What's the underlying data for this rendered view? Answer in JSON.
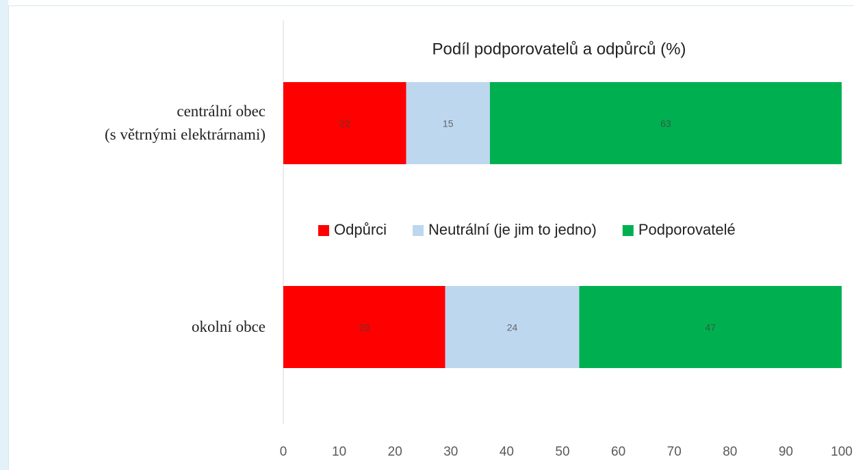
{
  "chart_data": {
    "type": "stacked-bar-horizontal",
    "title": "Podíl podporovatelů a odpůrců (%)",
    "categories": [
      "centrální obec\n(s větrnými elektrárnami)",
      "okolní obce"
    ],
    "series": [
      {
        "name": "Odpůrci",
        "color": "#ff0000",
        "values": [
          22,
          29
        ]
      },
      {
        "name": "Neutrální (je jim to jedno)",
        "color": "#bdd7ee",
        "values": [
          15,
          24
        ]
      },
      {
        "name": "Podporovatelé",
        "color": "#00b050",
        "values": [
          63,
          47
        ]
      }
    ],
    "xlim": [
      0,
      100
    ],
    "xticks": [
      0,
      10,
      20,
      30,
      40,
      50,
      60,
      70,
      80,
      90,
      100
    ],
    "legend": "middle"
  }
}
